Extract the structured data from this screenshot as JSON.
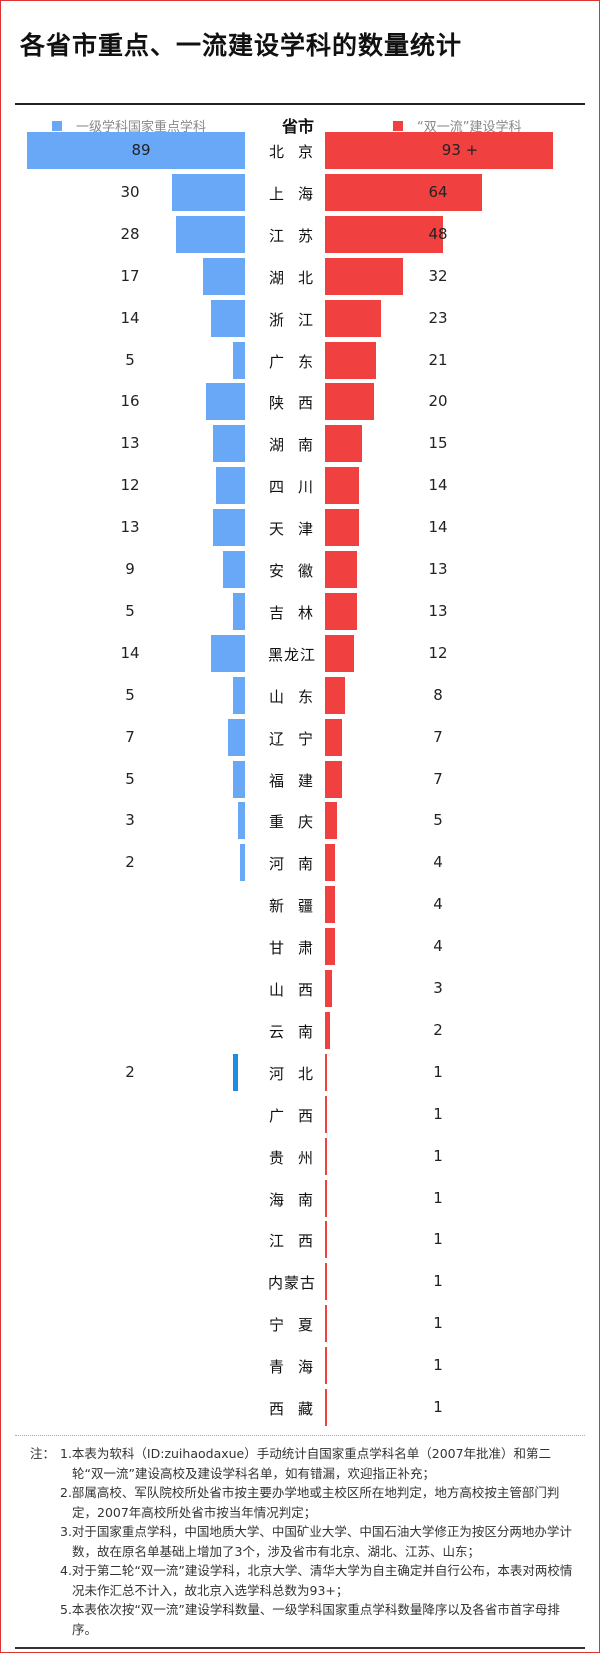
{
  "title": "各省市重点、一流建设学科的数量统计",
  "colors": {
    "left": "#69a8f7",
    "left_special": "#1a8fe0",
    "right": "#f04040",
    "border": "#d33333"
  },
  "chart_data": {
    "type": "bar",
    "orientation": "horizontal-butterfly",
    "column_header": "省市",
    "series": [
      {
        "name": "一级学科国家重点学科",
        "side": "left",
        "values": [
          89,
          30,
          28,
          17,
          14,
          5,
          16,
          13,
          12,
          13,
          9,
          5,
          14,
          5,
          7,
          5,
          3,
          2,
          null,
          null,
          null,
          null,
          2,
          null,
          null,
          null,
          null,
          null,
          null,
          null,
          null
        ]
      },
      {
        "name": "“双一流”建设学科",
        "side": "right",
        "values": [
          93,
          64,
          48,
          32,
          23,
          21,
          20,
          15,
          14,
          14,
          13,
          13,
          12,
          8,
          7,
          7,
          5,
          4,
          4,
          4,
          3,
          2,
          1,
          1,
          1,
          1,
          1,
          1,
          1,
          1,
          1
        ]
      }
    ],
    "right_labels": [
      "93 +",
      "64",
      "48",
      "32",
      "23",
      "21",
      "20",
      "15",
      "14",
      "14",
      "13",
      "13",
      "12",
      "8",
      "7",
      "7",
      "5",
      "4",
      "4",
      "4",
      "3",
      "2",
      "1",
      "1",
      "1",
      "1",
      "1",
      "1",
      "1",
      "1",
      "1"
    ],
    "left_labels": [
      "89",
      "30",
      "28",
      "17",
      "14",
      "5",
      "16",
      "13",
      "12",
      "13",
      "9",
      "5",
      "14",
      "5",
      "7",
      "5",
      "3",
      "2",
      "",
      "",
      "",
      "",
      "2",
      "",
      "",
      "",
      "",
      "",
      "",
      "",
      ""
    ],
    "categories": [
      "北京",
      "上海",
      "江苏",
      "湖北",
      "浙江",
      "广东",
      "陕西",
      "湖南",
      "四川",
      "天津",
      "安徽",
      "吉林",
      "黑龙江",
      "山东",
      "辽宁",
      "福建",
      "重庆",
      "河南",
      "新疆",
      "甘肃",
      "山西",
      "云南",
      "河北",
      "广西",
      "贵州",
      "海南",
      "江西",
      "内蒙古",
      "宁夏",
      "青海",
      "西藏"
    ],
    "special_left_category": "河北"
  },
  "notes": {
    "lead": "注：",
    "items": [
      "1.本表为软科（ID:zuihaodaxue）手动统计自国家重点学科名单（2007年批准）和第二轮“双一流”建设高校及建设学科名单，如有错漏，欢迎指正补充；",
      "2.部属高校、军队院校所处省市按主要办学地或主校区所在地判定，地方高校按主管部门判定，2007年高校所处省市按当年情况判定；",
      "3.对于国家重点学科，中国地质大学、中国矿业大学、中国石油大学修正为按区分两地办学计数，故在原名单基础上增加了3个，涉及省市有北京、湖北、江苏、山东；",
      "4.对于第二轮“双一流”建设学科，北京大学、清华大学为自主确定并自行公布，本表对两校情况未作汇总不计入，故北京入选学科总数为93+；",
      "5.本表依次按“双一流”建设学科数量、一级学科国家重点学科数量降序以及各省市首字母排序。"
    ]
  }
}
